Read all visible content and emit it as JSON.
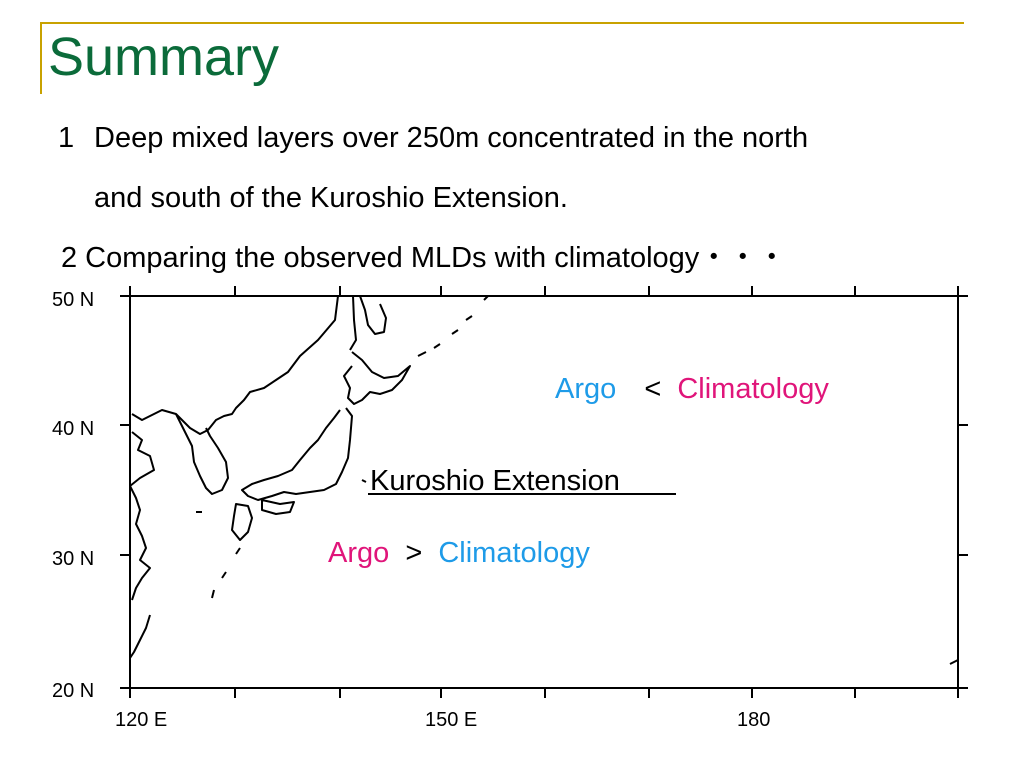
{
  "slide": {
    "title": "Summary",
    "points": [
      {
        "number": "1",
        "line1": "Deep mixed layers over 250m concentrated in the north",
        "line2": "and south of the Kuroshio Extension."
      },
      {
        "text": "2 Comparing the observed MLDs with climatology・・・"
      }
    ]
  },
  "map": {
    "lat_labels": [
      "50 N",
      "40 N",
      "30 N",
      "20 N"
    ],
    "lon_labels": [
      "120 E",
      "150 E",
      "180"
    ],
    "annotations": {
      "north": {
        "argo": "Argo",
        "op": "<",
        "clim": "Climatology"
      },
      "kuroshio": "Kuroshio Extension",
      "south": {
        "argo": "Argo",
        "op": ">",
        "clim": "Climatology"
      }
    }
  },
  "colors": {
    "title": "#0b6b3a",
    "accent_rule": "#c8a200",
    "blue": "#1e9be8",
    "pink": "#e0157a"
  }
}
